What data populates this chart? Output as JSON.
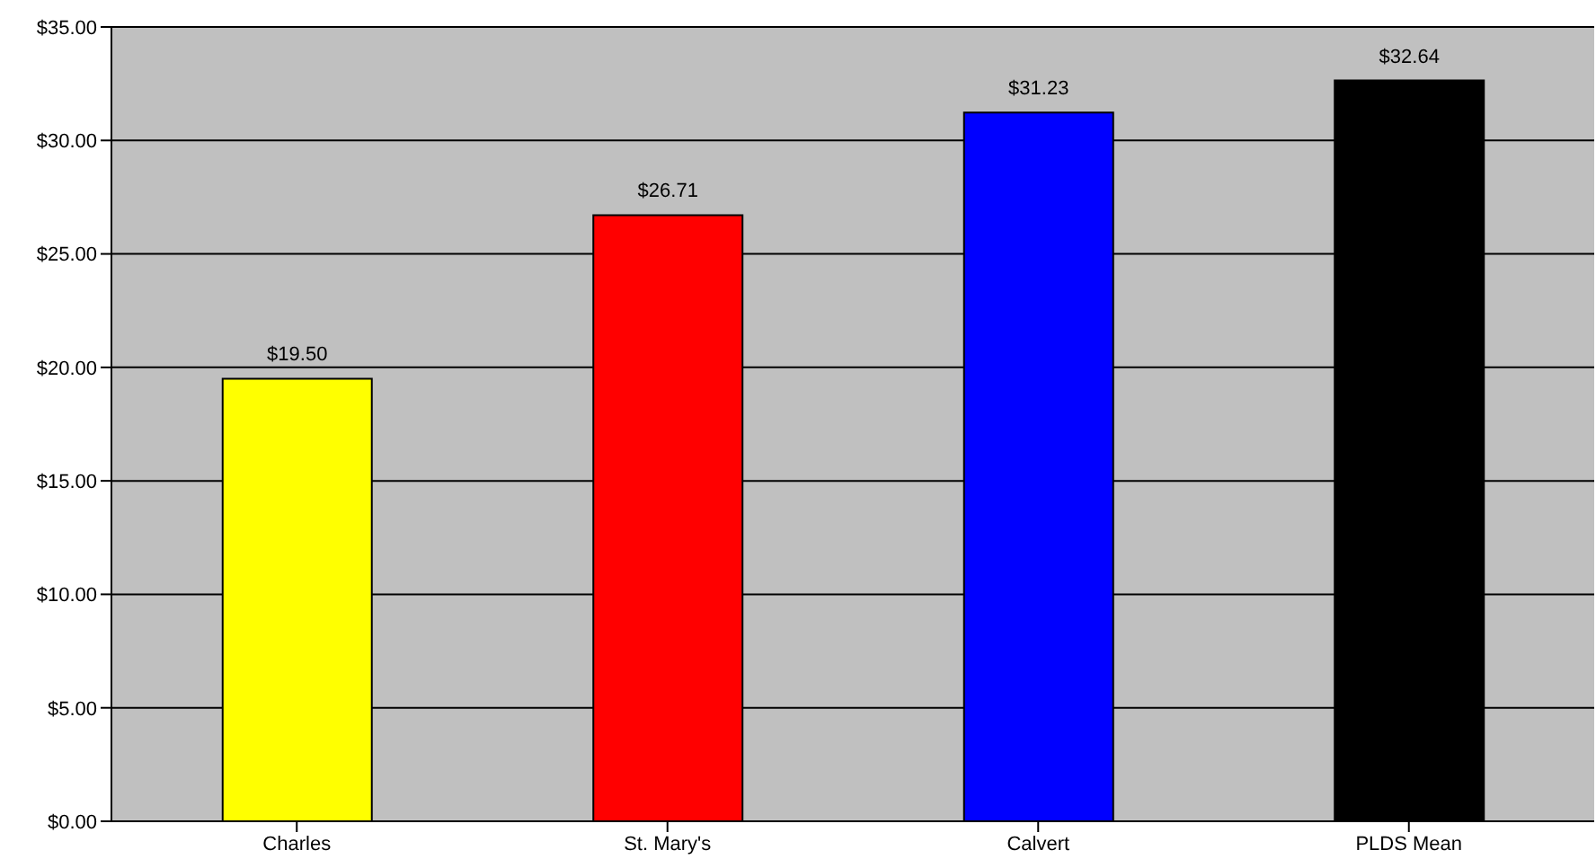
{
  "chart_data": {
    "type": "bar",
    "categories": [
      "Charles",
      "St. Mary's",
      "Calvert",
      "PLDS Mean"
    ],
    "values": [
      19.5,
      26.71,
      31.23,
      32.64
    ],
    "colors": [
      "#ffff00",
      "#ff0000",
      "#0000ff",
      "#000000"
    ],
    "value_labels": [
      "$19.50",
      "$26.71",
      "$31.23",
      "$32.64"
    ],
    "ylim": [
      0,
      35
    ],
    "yticks": [
      {
        "value": 0,
        "label": "$0.00"
      },
      {
        "value": 5,
        "label": "$5.00"
      },
      {
        "value": 10,
        "label": "$10.00"
      },
      {
        "value": 15,
        "label": "$15.00"
      },
      {
        "value": 20,
        "label": "$20.00"
      },
      {
        "value": 25,
        "label": "$25.00"
      },
      {
        "value": 30,
        "label": "$30.00"
      },
      {
        "value": 35,
        "label": "$35.00"
      }
    ],
    "grid": "y",
    "legend": false
  }
}
